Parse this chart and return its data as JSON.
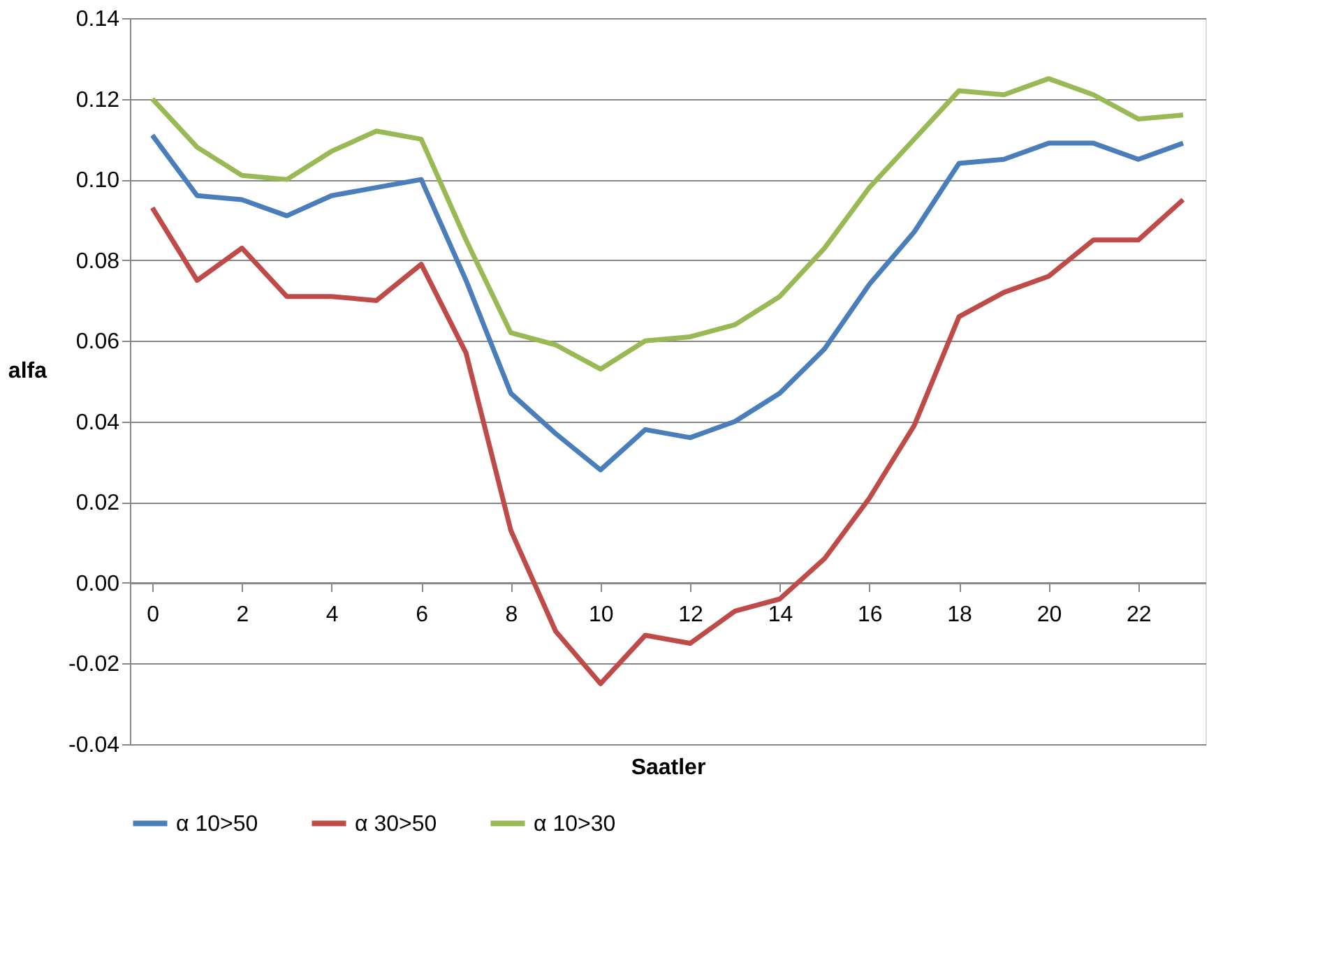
{
  "chart_data": {
    "type": "line",
    "xlabel": "Saatler",
    "ylabel": "alfa",
    "x": [
      0,
      1,
      2,
      3,
      4,
      5,
      6,
      7,
      8,
      9,
      10,
      11,
      12,
      13,
      14,
      15,
      16,
      17,
      18,
      19,
      20,
      21,
      22,
      23
    ],
    "series": [
      {
        "name": "α 10>50",
        "color": "#4a7ebb",
        "values": [
          0.111,
          0.096,
          0.095,
          0.091,
          0.096,
          0.098,
          0.1,
          0.075,
          0.047,
          0.037,
          0.028,
          0.038,
          0.036,
          0.04,
          0.047,
          0.058,
          0.074,
          0.087,
          0.104,
          0.105,
          0.109,
          0.109,
          0.105,
          0.109
        ]
      },
      {
        "name": "α 30>50",
        "color": "#be4b48",
        "values": [
          0.093,
          0.075,
          0.083,
          0.071,
          0.071,
          0.07,
          0.079,
          0.057,
          0.013,
          -0.012,
          -0.025,
          -0.013,
          -0.015,
          -0.007,
          -0.004,
          0.006,
          0.021,
          0.039,
          0.066,
          0.072,
          0.076,
          0.085,
          0.085,
          0.095
        ]
      },
      {
        "name": "α 10>30",
        "color": "#98b954",
        "values": [
          0.12,
          0.108,
          0.101,
          0.1,
          0.107,
          0.112,
          0.11,
          0.085,
          0.062,
          0.059,
          0.053,
          0.06,
          0.061,
          0.064,
          0.071,
          0.083,
          0.098,
          0.11,
          0.122,
          0.121,
          0.125,
          0.121,
          0.115,
          0.116
        ]
      }
    ],
    "xlim": [
      -0.5,
      23.5
    ],
    "xticks": [
      0,
      2,
      4,
      6,
      8,
      10,
      12,
      14,
      16,
      18,
      20,
      22
    ],
    "ylim": [
      -0.04,
      0.14
    ],
    "yticks": [
      {
        "value": -0.04,
        "label": "-0.04"
      },
      {
        "value": -0.02,
        "label": "-0.02"
      },
      {
        "value": 0,
        "label": "0.00"
      },
      {
        "value": 0.02,
        "label": "0.02"
      },
      {
        "value": 0.04,
        "label": "0.04"
      },
      {
        "value": 0.06,
        "label": "0.06"
      },
      {
        "value": 0.08,
        "label": "0.08"
      },
      {
        "value": 0.1,
        "label": "0.10"
      },
      {
        "value": 0.12,
        "label": "0.12"
      },
      {
        "value": 0.14,
        "label": "0.14"
      }
    ],
    "grid": "y",
    "legend": "bottom",
    "marker": "none",
    "line_style": "solid"
  }
}
